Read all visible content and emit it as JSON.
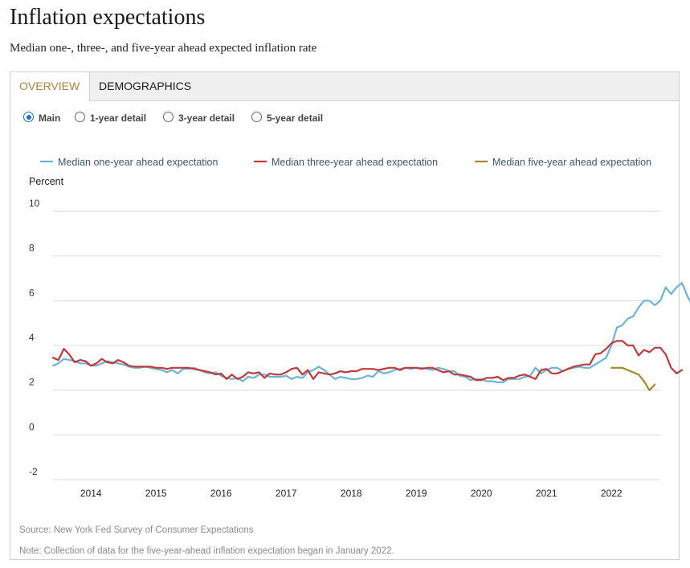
{
  "title": "Inflation expectations",
  "subtitle": "Median one-, three-, and five-year ahead expected inflation rate",
  "tabs": [
    {
      "label": "OVERVIEW",
      "active": true
    },
    {
      "label": "DEMOGRAPHICS",
      "active": false
    }
  ],
  "radios": [
    {
      "label": "Main",
      "selected": true
    },
    {
      "label": "1-year detail",
      "selected": false
    },
    {
      "label": "3-year detail",
      "selected": false
    },
    {
      "label": "5-year detail",
      "selected": false
    }
  ],
  "colors": {
    "one_year": "#6ab4dc",
    "three_year": "#c0393b",
    "five_year": "#a8862e",
    "grid": "#d9d9d9",
    "accent": "#a8853a"
  },
  "chart_data": {
    "type": "line",
    "ylabel": "Percent",
    "ylim": [
      -2,
      10
    ],
    "yticks": [
      "10",
      "8",
      "6",
      "4",
      "2",
      "0",
      "-2"
    ],
    "xlim": [
      2013.4167,
      2022.75
    ],
    "xticks": [
      "2014",
      "2015",
      "2016",
      "2017",
      "2018",
      "2019",
      "2020",
      "2021",
      "2022"
    ],
    "grid": true,
    "legend_position": "top",
    "series": [
      {
        "name": "Median one-year ahead expectation",
        "color_key": "one_year",
        "x_start": "2013-06",
        "values": [
          3.1,
          3.2,
          3.4,
          3.35,
          3.3,
          3.2,
          3.2,
          3.1,
          3.1,
          3.2,
          3.3,
          3.25,
          3.2,
          3.15,
          3.05,
          3.0,
          3.0,
          3.05,
          3.0,
          2.95,
          2.9,
          2.8,
          2.9,
          2.75,
          2.95,
          2.95,
          3.0,
          2.9,
          2.8,
          2.75,
          2.8,
          2.65,
          2.55,
          2.5,
          2.55,
          2.4,
          2.6,
          2.55,
          2.7,
          2.7,
          2.6,
          2.6,
          2.6,
          2.65,
          2.5,
          2.6,
          2.55,
          2.8,
          2.9,
          3.05,
          2.9,
          2.7,
          2.5,
          2.6,
          2.55,
          2.5,
          2.5,
          2.55,
          2.65,
          2.6,
          2.85,
          2.75,
          2.8,
          2.9,
          2.95,
          3.0,
          2.95,
          3.0,
          3.0,
          2.95,
          2.9,
          3.0,
          2.95,
          2.85,
          2.85,
          2.65,
          2.6,
          2.45,
          2.5,
          2.5,
          2.4,
          2.4,
          2.35,
          2.35,
          2.5,
          2.5,
          2.5,
          2.6,
          2.65,
          3.0,
          2.75,
          2.9,
          3.0,
          3.0,
          2.85,
          2.95,
          3.0,
          3.05,
          3.0,
          3.0,
          3.15,
          3.3,
          3.45,
          4.0,
          4.8,
          4.9,
          5.2,
          5.3,
          5.7,
          6.0,
          6.0,
          5.8,
          6.0,
          6.6,
          6.3,
          6.6,
          6.8,
          6.2,
          5.75,
          5.4
        ]
      },
      {
        "name": "Median three-year ahead expectation",
        "color_key": "three_year",
        "x_start": "2013-06",
        "values": [
          3.45,
          3.35,
          3.85,
          3.6,
          3.25,
          3.35,
          3.3,
          3.1,
          3.2,
          3.4,
          3.25,
          3.2,
          3.35,
          3.25,
          3.1,
          3.05,
          3.05,
          3.05,
          3.05,
          3.0,
          3.0,
          2.95,
          3.0,
          3.0,
          3.0,
          3.0,
          2.95,
          2.9,
          2.85,
          2.8,
          2.7,
          2.75,
          2.5,
          2.7,
          2.5,
          2.6,
          2.8,
          2.75,
          2.8,
          2.55,
          2.75,
          2.7,
          2.7,
          2.8,
          2.95,
          3.0,
          2.7,
          2.9,
          2.5,
          2.8,
          2.75,
          2.7,
          2.75,
          2.85,
          2.8,
          2.85,
          2.85,
          2.95,
          2.95,
          2.95,
          2.9,
          2.95,
          3.0,
          3.0,
          2.9,
          3.0,
          3.0,
          3.0,
          2.95,
          3.0,
          3.0,
          2.9,
          2.8,
          2.85,
          2.7,
          2.7,
          2.65,
          2.6,
          2.45,
          2.45,
          2.55,
          2.55,
          2.6,
          2.45,
          2.55,
          2.55,
          2.65,
          2.7,
          2.6,
          2.5,
          2.9,
          2.95,
          2.75,
          2.75,
          2.85,
          2.95,
          3.05,
          3.1,
          3.15,
          3.15,
          3.6,
          3.65,
          3.85,
          4.1,
          4.2,
          4.2,
          4.0,
          4.0,
          3.55,
          3.8,
          3.7,
          3.9,
          3.9,
          3.6,
          3.0,
          2.75,
          2.9
        ]
      },
      {
        "name": "Median five-year ahead expectation",
        "color_key": "five_year",
        "x_start": "2022-01",
        "values": [
          3.0,
          3.0,
          3.0,
          2.9,
          2.8,
          2.7,
          2.4,
          2.0,
          2.25
        ]
      }
    ]
  },
  "notes": {
    "source": "Source: New York Fed Survey of Consumer Expectations",
    "note": "Note: Collection of data for the five-year-ahead inflation expectation began in January 2022."
  }
}
